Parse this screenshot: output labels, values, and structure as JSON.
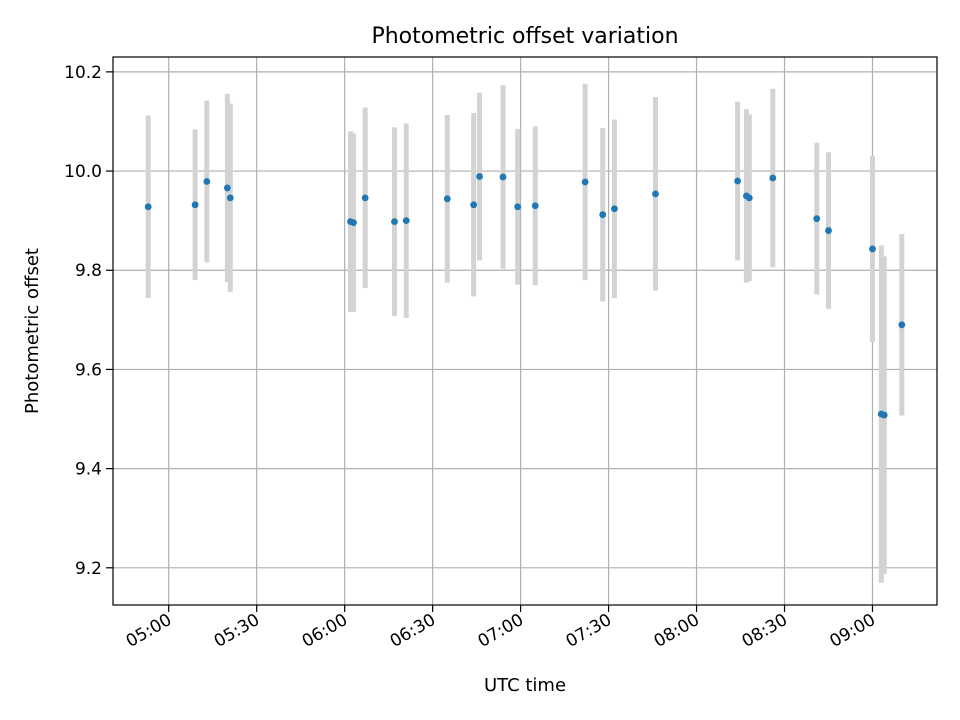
{
  "chart_data": {
    "type": "scatter",
    "title": "Photometric offset variation",
    "xlabel": "UTC time",
    "ylabel": "Photometric offset",
    "xlim": [
      "04:41",
      "09:22"
    ],
    "ylim": [
      9.125,
      10.23
    ],
    "grid": true,
    "colors": {
      "marker": "#1f77b4",
      "errorbar": "#d3d3d3",
      "grid": "#b0b0b0"
    },
    "xticks": [
      "05:00",
      "05:30",
      "06:00",
      "06:30",
      "07:00",
      "07:30",
      "08:00",
      "08:30",
      "09:00"
    ],
    "yticks": [
      "9.2",
      "9.4",
      "9.6",
      "9.8",
      "10.0",
      "10.2"
    ],
    "points": [
      {
        "t": "04:53",
        "y": 9.928,
        "err": 0.184
      },
      {
        "t": "05:09",
        "y": 9.932,
        "err": 0.152
      },
      {
        "t": "05:13",
        "y": 9.979,
        "err": 0.163
      },
      {
        "t": "05:20",
        "y": 9.966,
        "err": 0.19
      },
      {
        "t": "05:21",
        "y": 9.946,
        "err": 0.19
      },
      {
        "t": "06:02",
        "y": 9.898,
        "err": 0.182
      },
      {
        "t": "06:03",
        "y": 9.896,
        "err": 0.18
      },
      {
        "t": "06:07",
        "y": 9.946,
        "err": 0.182
      },
      {
        "t": "06:17",
        "y": 9.898,
        "err": 0.19
      },
      {
        "t": "06:21",
        "y": 9.9,
        "err": 0.196
      },
      {
        "t": "06:35",
        "y": 9.944,
        "err": 0.169
      },
      {
        "t": "06:44",
        "y": 9.932,
        "err": 0.185
      },
      {
        "t": "06:46",
        "y": 9.989,
        "err": 0.169
      },
      {
        "t": "06:54",
        "y": 9.988,
        "err": 0.185
      },
      {
        "t": "06:59",
        "y": 9.928,
        "err": 0.157
      },
      {
        "t": "07:05",
        "y": 9.93,
        "err": 0.16
      },
      {
        "t": "07:22",
        "y": 9.978,
        "err": 0.198
      },
      {
        "t": "07:28",
        "y": 9.912,
        "err": 0.175
      },
      {
        "t": "07:32",
        "y": 9.924,
        "err": 0.18
      },
      {
        "t": "07:46",
        "y": 9.954,
        "err": 0.195
      },
      {
        "t": "08:14",
        "y": 9.98,
        "err": 0.16
      },
      {
        "t": "08:17",
        "y": 9.95,
        "err": 0.175
      },
      {
        "t": "08:18",
        "y": 9.946,
        "err": 0.168
      },
      {
        "t": "08:26",
        "y": 9.986,
        "err": 0.18
      },
      {
        "t": "08:41",
        "y": 9.904,
        "err": 0.153
      },
      {
        "t": "08:45",
        "y": 9.88,
        "err": 0.158
      },
      {
        "t": "09:00",
        "y": 9.843,
        "err": 0.188
      },
      {
        "t": "09:03",
        "y": 9.51,
        "err": 0.34
      },
      {
        "t": "09:04",
        "y": 9.508,
        "err": 0.32
      },
      {
        "t": "09:10",
        "y": 9.69,
        "err": 0.183
      }
    ]
  }
}
